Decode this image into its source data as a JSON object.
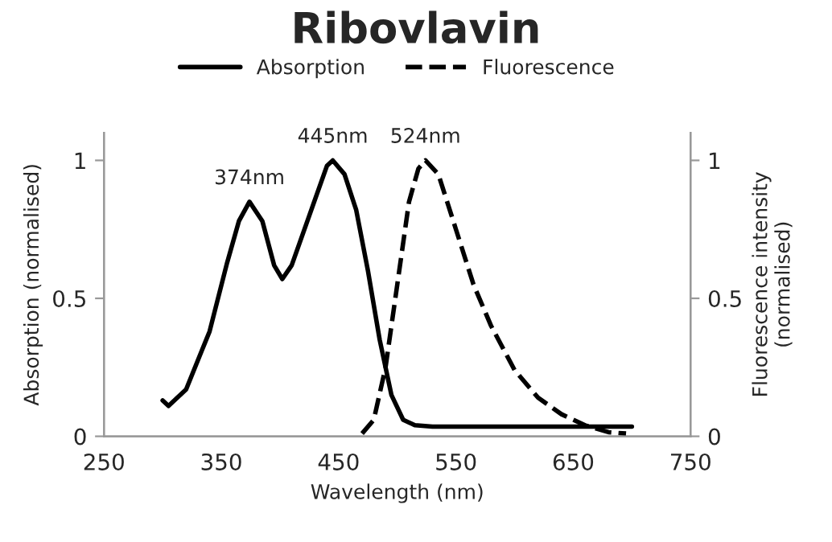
{
  "chart_data": {
    "type": "line",
    "title": "Ribovlavin",
    "xlabel": "Wavelength (nm)",
    "ylabel": "Absorption (normalised)",
    "y2label": "Fluorescence intensity\n(normalised)",
    "xlim": [
      250,
      750
    ],
    "xticks": [
      250,
      350,
      450,
      550,
      650,
      750
    ],
    "ylim": [
      0,
      1.1
    ],
    "yticks": [
      0,
      0.5,
      1
    ],
    "y2lim": [
      0,
      1.1
    ],
    "y2ticks": [
      0,
      0.5,
      1
    ],
    "legend": "top",
    "grid": false,
    "marker": "none",
    "series": [
      {
        "name": "Absorption",
        "color": "#000000",
        "line_style": "solid",
        "x": [
          300,
          305,
          320,
          340,
          355,
          365,
          374,
          385,
          395,
          402,
          410,
          425,
          440,
          445,
          455,
          465,
          475,
          485,
          495,
          505,
          515,
          530,
          700
        ],
        "values": [
          0.13,
          0.11,
          0.17,
          0.38,
          0.63,
          0.78,
          0.85,
          0.78,
          0.62,
          0.57,
          0.62,
          0.8,
          0.98,
          1.0,
          0.95,
          0.82,
          0.6,
          0.35,
          0.15,
          0.06,
          0.04,
          0.035,
          0.035
        ]
      },
      {
        "name": "Fluorescence",
        "color": "#000000",
        "line_style": "dashed",
        "axis": "y2",
        "x": [
          470,
          480,
          490,
          500,
          510,
          518,
          524,
          535,
          550,
          565,
          580,
          600,
          620,
          640,
          660,
          680,
          695
        ],
        "values": [
          0.01,
          0.06,
          0.25,
          0.55,
          0.85,
          0.97,
          1.0,
          0.95,
          0.75,
          0.55,
          0.4,
          0.24,
          0.14,
          0.08,
          0.04,
          0.015,
          0.01
        ]
      }
    ],
    "annotations": [
      {
        "text": "374nm",
        "x": 374,
        "y": 0.85
      },
      {
        "text": "445nm",
        "x": 445,
        "y": 1.0
      },
      {
        "text": "524nm",
        "x": 524,
        "y": 1.0
      }
    ]
  }
}
